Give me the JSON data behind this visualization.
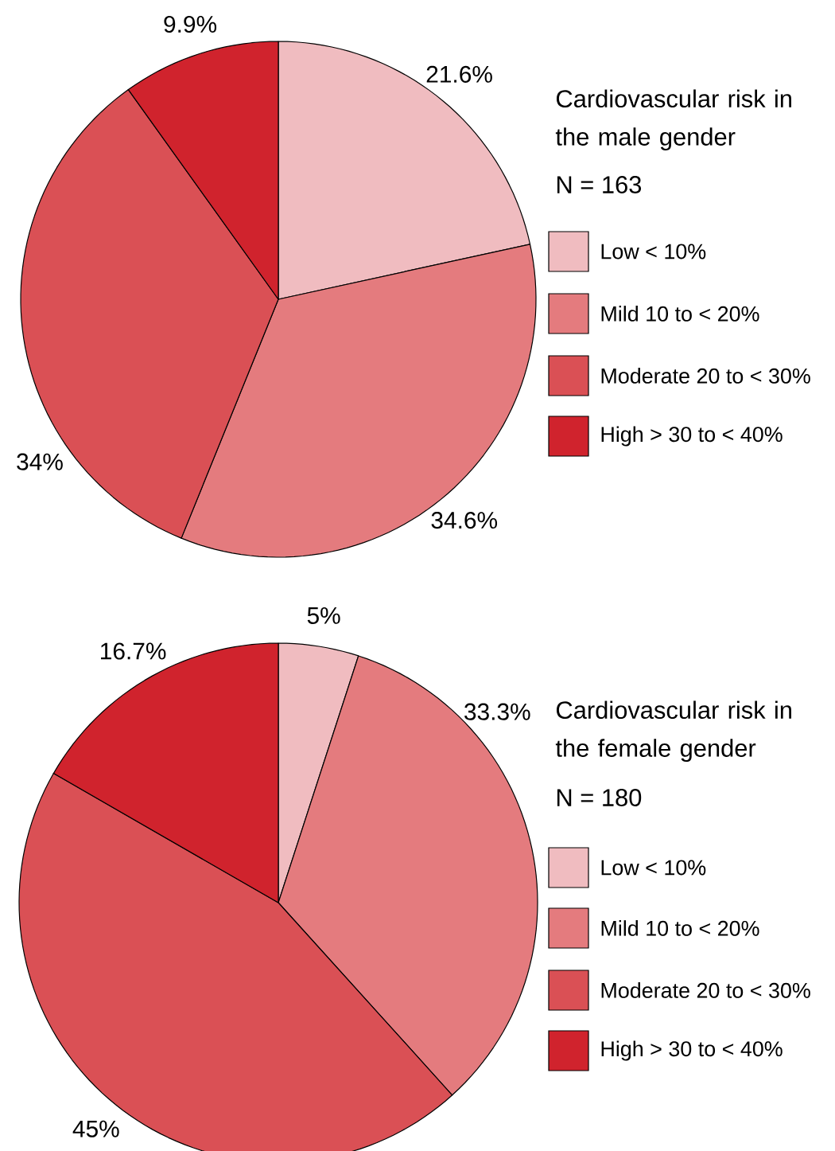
{
  "chart_data": [
    {
      "type": "pie",
      "legend_title": "Cardiovascular risk in the male gender",
      "annotations": [
        "N = 163"
      ],
      "legend": "right",
      "categories": [
        "Low < 10%",
        "Mild 10 to < 20%",
        "Moderate 20 to < 30%",
        "High > 30 to < 40%"
      ],
      "values": [
        21.6,
        34.6,
        34,
        9.9
      ],
      "value_labels": [
        "21.6%",
        "34.6%",
        "34%",
        "9.9%"
      ],
      "colors": [
        "#f0bcc0",
        "#e47b7e",
        "#da5055",
        "#d0232d"
      ]
    },
    {
      "type": "pie",
      "legend_title": "Cardiovascular risk in the female gender",
      "annotations": [
        "N = 180"
      ],
      "legend": "right",
      "categories": [
        "Low < 10%",
        "Mild 10 to < 20%",
        "Moderate 20 to < 30%",
        "High > 30 to < 40%"
      ],
      "values": [
        5,
        33.3,
        45,
        16.7
      ],
      "value_labels": [
        "5%",
        "33.3%",
        "45%",
        "16.7%"
      ],
      "colors": [
        "#f0bcc0",
        "#e47b7e",
        "#da5055",
        "#d0232d"
      ]
    }
  ]
}
